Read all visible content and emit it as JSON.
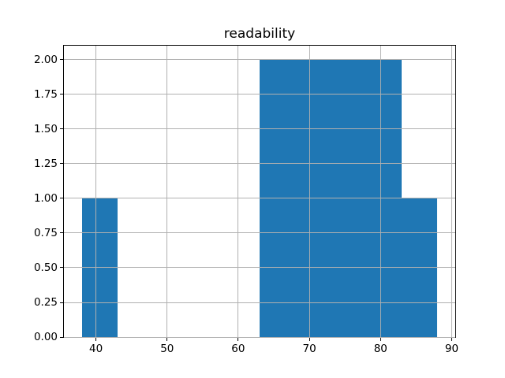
{
  "figure": {
    "bar_color": "#1f77b4",
    "grid_color": "#b0b0b0",
    "spine_color": "#000000",
    "background_color": "#ffffff"
  },
  "chart_data": {
    "type": "bar",
    "subtype": "histogram",
    "title": "readability",
    "xlabel": "",
    "ylabel": "",
    "bins": [
      [
        38,
        43
      ],
      [
        43,
        48
      ],
      [
        48,
        53
      ],
      [
        53,
        58
      ],
      [
        58,
        63
      ],
      [
        63,
        68
      ],
      [
        68,
        73
      ],
      [
        73,
        78
      ],
      [
        78,
        83
      ],
      [
        83,
        88
      ]
    ],
    "counts": [
      1,
      0,
      0,
      0,
      0,
      2,
      2,
      2,
      2,
      1
    ],
    "xlim": [
      35.5,
      90.5
    ],
    "ylim": [
      0,
      2.1
    ],
    "xticks": [
      40,
      50,
      60,
      70,
      80,
      90
    ],
    "xtick_labels": [
      "40",
      "50",
      "60",
      "70",
      "80",
      "90"
    ],
    "yticks": [
      0,
      0.25,
      0.5,
      0.75,
      1,
      1.25,
      1.5,
      1.75,
      2
    ],
    "ytick_labels": [
      "0.00",
      "0.25",
      "0.50",
      "0.75",
      "1.00",
      "1.25",
      "1.50",
      "1.75",
      "2.00"
    ],
    "grid": true,
    "grid_above_bars": true,
    "legend": false
  }
}
